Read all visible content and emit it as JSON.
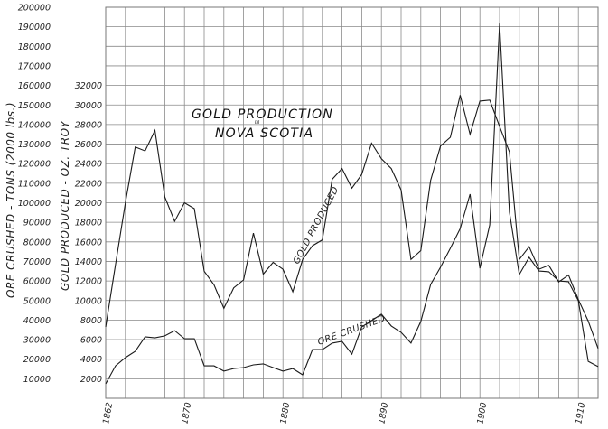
{
  "chart_data": {
    "type": "line",
    "title": "GOLD PRODUCTION IN NOVA SCOTIA",
    "title_lines": [
      "GOLD PRODUCTION",
      "IN",
      "NOVA SCOTIA"
    ],
    "xlabel": "",
    "ylabel_outer": "ORE CRUSHED - TONS (2000 lbs.)",
    "ylabel_inner": "GOLD PRODUCED - OZ. TROY",
    "x": [
      1862,
      1863,
      1864,
      1865,
      1866,
      1867,
      1868,
      1869,
      1870,
      1871,
      1872,
      1873,
      1874,
      1875,
      1876,
      1877,
      1878,
      1879,
      1880,
      1881,
      1882,
      1883,
      1884,
      1885,
      1886,
      1887,
      1888,
      1889,
      1890,
      1891,
      1892,
      1893,
      1894,
      1895,
      1896,
      1897,
      1898,
      1899,
      1900,
      1901,
      1902,
      1903,
      1904,
      1905,
      1906,
      1907,
      1908,
      1909,
      1910,
      1911,
      1912
    ],
    "x_ticks": [
      1862,
      1870,
      1880,
      1890,
      1900,
      1910
    ],
    "xlim": [
      1862,
      1912
    ],
    "y_outer_ticks": [
      10000,
      20000,
      30000,
      40000,
      50000,
      60000,
      70000,
      80000,
      90000,
      100000,
      110000,
      120000,
      130000,
      140000,
      150000,
      160000,
      170000,
      180000,
      190000,
      200000
    ],
    "y_outer_lim": [
      0,
      200000
    ],
    "y_inner_ticks": [
      2000,
      4000,
      6000,
      8000,
      10000,
      12000,
      14000,
      16000,
      18000,
      20000,
      22000,
      24000,
      26000,
      28000,
      30000,
      32000
    ],
    "y_inner_lim": [
      0,
      40000
    ],
    "grid": true,
    "legend": "inline labels",
    "series": [
      {
        "name": "GOLD PRODUCED",
        "axis": "inner",
        "unit": "oz. troy",
        "values": [
          7300,
          13700,
          20000,
          25700,
          25300,
          27400,
          20600,
          18100,
          20000,
          19400,
          13000,
          11600,
          9200,
          11300,
          12100,
          16900,
          12700,
          13900,
          13200,
          10900,
          14200,
          15600,
          16200,
          22400,
          23500,
          21500,
          22900,
          26100,
          24500,
          23500,
          21300,
          14200,
          15100,
          22300,
          25800,
          26700,
          31000,
          27000,
          30400,
          30500,
          27800,
          25200,
          14200,
          15500,
          13200,
          13600,
          11900,
          12600,
          10100,
          7900,
          5100
        ]
      },
      {
        "name": "ORE CRUSHED",
        "axis": "outer",
        "unit": "tons (2000 lbs.)",
        "values": [
          7400,
          16600,
          20800,
          24000,
          31400,
          30900,
          31900,
          34600,
          30500,
          30500,
          16600,
          16600,
          13900,
          15200,
          15700,
          17100,
          17600,
          15700,
          13900,
          15200,
          12000,
          24900,
          24900,
          28200,
          29100,
          22600,
          36500,
          39700,
          43000,
          37000,
          33700,
          28200,
          39300,
          58200,
          67000,
          76700,
          86800,
          104400,
          66500,
          88700,
          191700,
          95200,
          63300,
          72100,
          65100,
          64700,
          60000,
          59600,
          49900,
          18900,
          16200
        ]
      }
    ]
  },
  "labels": {
    "title_line1": "GOLD PRODUCTION",
    "title_in": "IN",
    "title_line2": "NOVA SCOTIA",
    "y_outer_title": "ORE CRUSHED - TONS (2000 lbs.)",
    "y_inner_title": "GOLD PRODUCED - OZ. TROY",
    "gold_series_label": "GOLD PRODUCED",
    "ore_series_label": "ORE CRUSHED"
  }
}
